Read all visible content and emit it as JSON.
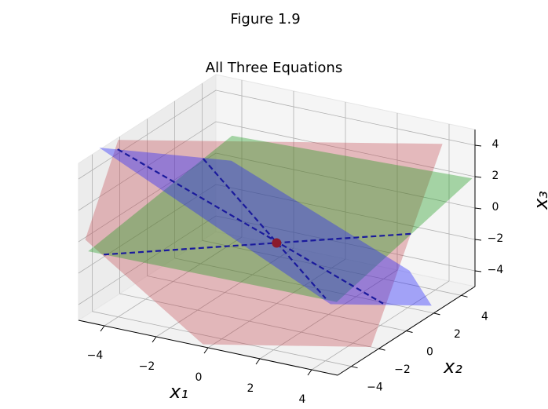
{
  "chart_data": {
    "type": "surface3d",
    "suptitle": "Figure 1.9",
    "title": "All Three Equations",
    "xlabel": "x₁",
    "ylabel": "x₂",
    "zlabel": "x₃",
    "xlim": [
      -5,
      5
    ],
    "ylim": [
      -5,
      5
    ],
    "zlim": [
      -5,
      5
    ],
    "xticks": [
      {
        "value": -4,
        "label": "−4"
      },
      {
        "value": -2,
        "label": "−2"
      },
      0,
      2,
      4
    ],
    "yticks": [
      {
        "value": -4,
        "label": "−4"
      },
      {
        "value": -2,
        "label": "−2"
      },
      0,
      2,
      4
    ],
    "zticks": [
      {
        "value": -4,
        "label": "−4"
      },
      {
        "value": -2,
        "label": "−2"
      },
      0,
      2,
      4
    ],
    "grid": true,
    "planes": [
      {
        "color": "#c03a44",
        "alpha": 0.32,
        "vertices": [
          [
            -4.9,
            -4.7,
            0
          ],
          [
            -4.9,
            -2.3,
            5
          ],
          [
            4.7,
            3.2,
            5
          ],
          [
            4.7,
            -2.0,
            -5
          ],
          [
            -0.3,
            -4.8,
            -5
          ]
        ]
      },
      {
        "color": "#1f9a1f",
        "alpha": 0.38,
        "vertices": [
          [
            -5,
            -4.3,
            -1
          ],
          [
            -3.9,
            4.1,
            2
          ],
          [
            5,
            4.8,
            2
          ],
          [
            3.8,
            -2.8,
            -2
          ]
        ]
      },
      {
        "color": "#2020ff",
        "alpha": 0.38,
        "vertices": [
          [
            -5.1,
            -3.3,
            5
          ],
          [
            -3.5,
            3.3,
            1
          ],
          [
            3.8,
            2.5,
            -3
          ],
          [
            4.6,
            2.6,
            -5
          ],
          [
            1.6,
            0.9,
            -5
          ]
        ]
      }
    ],
    "lines": [
      {
        "color": "#1a1a9c",
        "style": "dashed",
        "points": [
          [
            -4.4,
            -4.3,
            -1
          ],
          [
            3.6,
            3.0,
            -1
          ]
        ]
      },
      {
        "color": "#1a1a9c",
        "style": "dashed",
        "points": [
          [
            -4.5,
            -3.1,
            5
          ],
          [
            3.1,
            1.9,
            -5
          ]
        ]
      },
      {
        "color": "#1a1a9c",
        "style": "dashed",
        "points": [
          [
            -3,
            0.3,
            3
          ],
          [
            1.2,
            1.3,
            -5
          ]
        ]
      }
    ],
    "point": {
      "color": "#8b1a2b",
      "coords": [
        0.1,
        -0.2,
        -1
      ]
    }
  }
}
